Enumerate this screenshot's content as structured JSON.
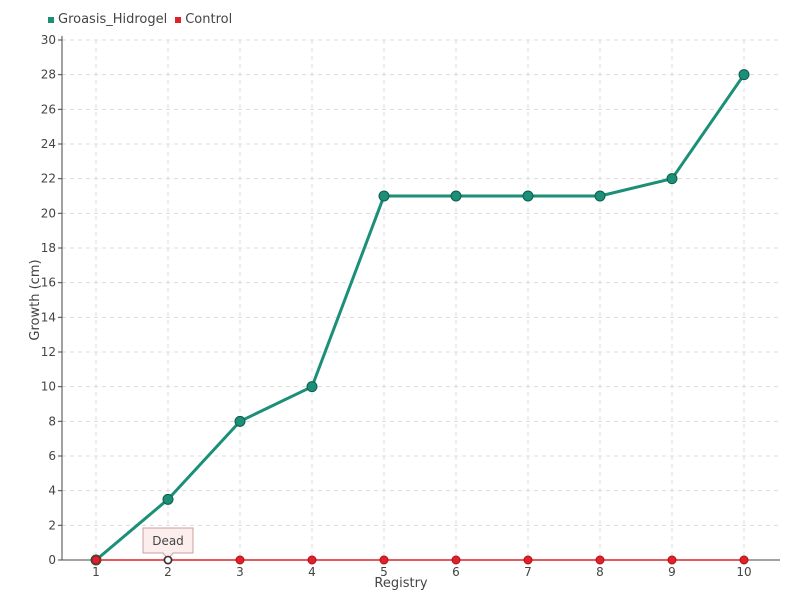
{
  "chart_data": {
    "type": "line",
    "title": "",
    "xlabel": "Registry",
    "ylabel": "Growth (cm)",
    "x": [
      "1",
      "2",
      "3",
      "4",
      "5",
      "6",
      "7",
      "8",
      "9",
      "10"
    ],
    "ylim": [
      0,
      30
    ],
    "yticks": [
      "0",
      "2",
      "4",
      "6",
      "8",
      "10",
      "12",
      "14",
      "16",
      "18",
      "20",
      "22",
      "24",
      "26",
      "28",
      "30"
    ],
    "grid": true,
    "legend_position": "top-left",
    "series": [
      {
        "name": "Groasis_Hidrogel",
        "color": "#1b8f77",
        "values": [
          0,
          3.5,
          8,
          10,
          21,
          21,
          21,
          21,
          22,
          28
        ]
      },
      {
        "name": "Control",
        "color": "#e0202a",
        "values": [
          0,
          0,
          0,
          0,
          0,
          0,
          0,
          0,
          0,
          0
        ]
      }
    ],
    "annotations": [
      {
        "text": "Dead",
        "x": "2",
        "y": 0
      }
    ]
  }
}
